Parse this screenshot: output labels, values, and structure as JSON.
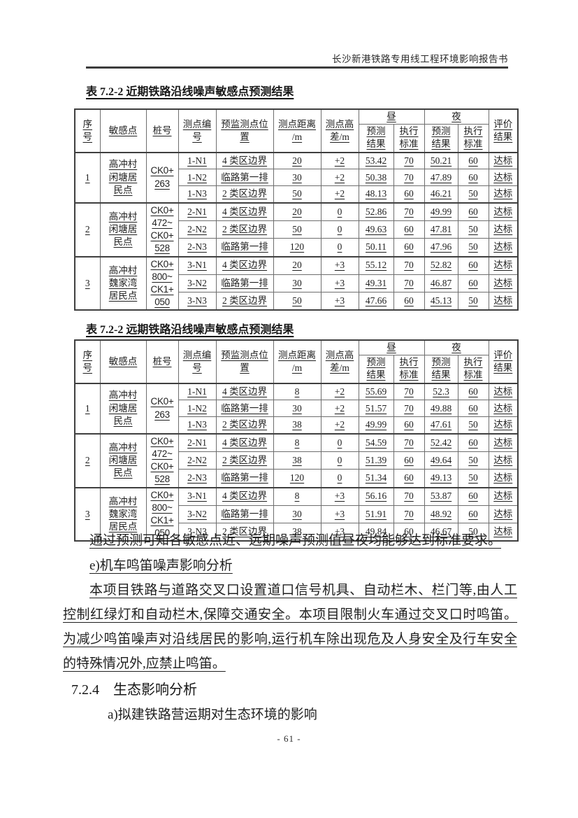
{
  "doc_header": "长沙新港铁路专用线工程环境影响报告书",
  "footer": "- 61 -",
  "table_columns": {
    "no": "序\n号",
    "sensitive_point": "敏感点",
    "stake": "桩号",
    "point_id": "测点编\n号",
    "location": "预监测点位\n置",
    "distance": "测点距离\n/m",
    "height_diff": "测点高\n差/m",
    "day": "昼",
    "night": "夜",
    "predicted": "预测\n结果",
    "standard": "执行\n标准",
    "evaluation": "评价\n结果"
  },
  "tables": [
    {
      "title": "表 7.2-2 近期铁路沿线噪声敏感点预测结果",
      "groups": [
        {
          "no": "1",
          "sensitive_point": "高冲村\n闲塘居\n民点",
          "stake": "CK0+\n263",
          "rows": [
            [
              "1-N1",
              "4 类区边界",
              "20",
              "+2",
              "53.42",
              "70",
              "50.21",
              "60",
              "达标"
            ],
            [
              "1-N2",
              "临路第一排",
              "30",
              "+2",
              "50.38",
              "70",
              "47.89",
              "60",
              "达标"
            ],
            [
              "1-N3",
              "2 类区边界",
              "50",
              "+2",
              "48.13",
              "60",
              "46.21",
              "50",
              "达标"
            ]
          ]
        },
        {
          "no": "2",
          "sensitive_point": "高冲村\n闲塘居\n民点",
          "stake": "CK0+\n472~\nCK0+\n528",
          "rows": [
            [
              "2-N1",
              "4 类区边界",
              "20",
              "0",
              "52.86",
              "70",
              "49.99",
              "60",
              "达标"
            ],
            [
              "2-N2",
              "2 类区边界",
              "50",
              "0",
              "49.63",
              "60",
              "47.81",
              "50",
              "达标"
            ],
            [
              "2-N3",
              "临路第一排",
              "120",
              "0",
              "50.11",
              "60",
              "47.96",
              "50",
              "达标"
            ]
          ]
        },
        {
          "no": "3",
          "sensitive_point": "高冲村\n魏家湾\n居民点",
          "stake": "CK0+\n800~\nCK1+\n050",
          "rows": [
            [
              "3-N1",
              "4 类区边界",
              "20",
              "+3",
              "55.12",
              "70",
              "52.82",
              "60",
              "达标"
            ],
            [
              "3-N2",
              "临路第一排",
              "30",
              "+3",
              "49.31",
              "70",
              "46.87",
              "60",
              "达标"
            ],
            [
              "3-N3",
              "2 类区边界",
              "50",
              "+3",
              "47.66",
              "60",
              "45.13",
              "50",
              "达标"
            ]
          ]
        }
      ]
    },
    {
      "title": "表 7.2-2 远期铁路沿线噪声敏感点预测结果",
      "groups": [
        {
          "no": "1",
          "sensitive_point": "高冲村\n闲塘居\n民点",
          "stake": "CK0+\n263",
          "rows": [
            [
              "1-N1",
              "4 类区边界",
              "8",
              "+2",
              "55.69",
              "70",
              "52.3",
              "60",
              "达标"
            ],
            [
              "1-N2",
              "临路第一排",
              "30",
              "+2",
              "51.57",
              "70",
              "49.88",
              "60",
              "达标"
            ],
            [
              "1-N3",
              "2 类区边界",
              "38",
              "+2",
              "49.99",
              "60",
              "47.61",
              "50",
              "达标"
            ]
          ]
        },
        {
          "no": "2",
          "sensitive_point": "高冲村\n闲塘居\n民点",
          "stake": "CK0+\n472~\nCK0+\n528",
          "rows": [
            [
              "2-N1",
              "4 类区边界",
              "8",
              "0",
              "54.59",
              "70",
              "52.42",
              "60",
              "达标"
            ],
            [
              "2-N2",
              "2 类区边界",
              "38",
              "0",
              "51.39",
              "60",
              "49.64",
              "50",
              "达标"
            ],
            [
              "2-N3",
              "临路第一排",
              "120",
              "0",
              "51.34",
              "60",
              "49.13",
              "50",
              "达标"
            ]
          ]
        },
        {
          "no": "3",
          "sensitive_point": "高冲村\n魏家湾\n居民点",
          "stake": "CK0+\n800~\nCK1+\n050",
          "rows": [
            [
              "3-N1",
              "4 类区边界",
              "8",
              "+3",
              "56.16",
              "70",
              "53.87",
              "60",
              "达标"
            ],
            [
              "3-N2",
              "临路第一排",
              "30",
              "+3",
              "51.91",
              "70",
              "48.92",
              "60",
              "达标"
            ],
            [
              "3-N3",
              "2 类区边界",
              "38",
              "+3",
              "49.84",
              "60",
              "46.67",
              "50",
              "达标"
            ]
          ]
        }
      ]
    }
  ],
  "paragraphs": {
    "summary": "通过预测可知各敏感点近、远期噪声预测值昼夜均能够达到标准要求。",
    "item_e": "e)机车鸣笛噪声影响分析",
    "body": "本项目铁路与道路交叉口设置道口信号机具、自动栏木、栏门等,由人工控制红绿灯和自动栏木,保障交通安全。本项目限制火车通过交叉口时鸣笛。为减少鸣笛噪声对沿线居民的影响,运行机车除出现危及人身安全及行车安全的特殊情况外,应禁止鸣笛。"
  },
  "section": {
    "heading": "7.2.4　生态影响分析",
    "item_a": "a)拟建铁路营运期对生态环境的影响"
  }
}
